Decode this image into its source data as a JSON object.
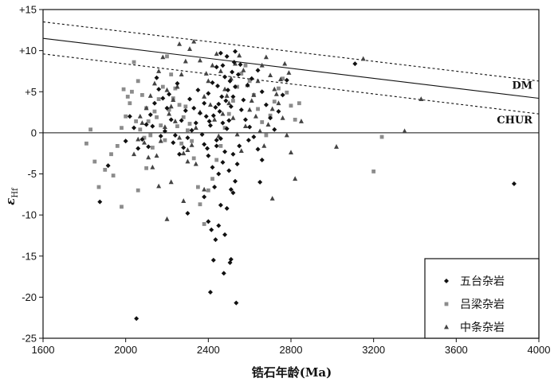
{
  "chart_data": {
    "type": "scatter",
    "xlabel": "锆石年龄(Ma)",
    "ylabel": "ε",
    "ylabel_sub": "Hf",
    "xlim": [
      1600,
      4000
    ],
    "ylim": [
      -25,
      15
    ],
    "x_ticks": [
      1600,
      2000,
      2400,
      2800,
      3200,
      3600,
      4000
    ],
    "y_ticks": [
      15,
      10,
      5,
      0,
      -5,
      -10,
      -15,
      -20,
      -25
    ],
    "y_tick_labels": [
      "+15",
      "+10",
      "+5",
      "0",
      "-5",
      "-10",
      "-15",
      "-20",
      "-25"
    ],
    "grid": false,
    "legend_position": "bottom-right",
    "reference_lines": [
      {
        "label": "DM",
        "style": "solid",
        "points": [
          [
            1600,
            11.5
          ],
          [
            4000,
            4.2
          ]
        ]
      },
      {
        "label": "",
        "style": "dashed",
        "points": [
          [
            1600,
            13.5
          ],
          [
            4000,
            6.3
          ]
        ]
      },
      {
        "label": "",
        "style": "dashed",
        "points": [
          [
            1600,
            9.6
          ],
          [
            4000,
            2.3
          ]
        ]
      },
      {
        "label": "CHUR",
        "style": "solid",
        "points": [
          [
            1600,
            0
          ],
          [
            4000,
            0
          ]
        ]
      }
    ],
    "series": [
      {
        "name": "五台杂岩",
        "marker": "diamond",
        "color": "#111111",
        "points": [
          [
            2052,
            -22.6
          ],
          [
            2410,
            -19.4
          ],
          [
            2425,
            -15.5
          ],
          [
            2435,
            -13.0
          ],
          [
            2475,
            -17.1
          ],
          [
            2510,
            -15.4
          ],
          [
            2505,
            -15.8
          ],
          [
            2535,
            -20.7
          ],
          [
            2415,
            -11.8
          ],
          [
            2450,
            -11.3
          ],
          [
            2480,
            -12.4
          ],
          [
            2400,
            -10.8
          ],
          [
            3880,
            -6.2
          ],
          [
            1875,
            -8.4
          ],
          [
            1915,
            -4.0
          ],
          [
            2300,
            -9.8
          ],
          [
            2380,
            -7.8
          ],
          [
            2460,
            -8.8
          ],
          [
            2490,
            -9.2
          ],
          [
            2520,
            -7.3
          ],
          [
            2430,
            -6.6
          ],
          [
            2450,
            -5.0
          ],
          [
            2470,
            -3.6
          ],
          [
            2480,
            -2.3
          ],
          [
            2420,
            -4.2
          ],
          [
            2400,
            -2.8
          ],
          [
            2380,
            -1.4
          ],
          [
            2440,
            -1.6
          ],
          [
            2500,
            -4.6
          ],
          [
            2520,
            -2.6
          ],
          [
            2460,
            -0.7
          ],
          [
            2490,
            0.5
          ],
          [
            2500,
            1.5
          ],
          [
            2510,
            3.2
          ],
          [
            2520,
            4.4
          ],
          [
            2530,
            5.6
          ],
          [
            2480,
            6.8
          ],
          [
            2470,
            8.2
          ],
          [
            2490,
            9.3
          ],
          [
            2460,
            9.7
          ],
          [
            2530,
            9.9
          ],
          [
            2440,
            8.0
          ],
          [
            2420,
            6.1
          ],
          [
            2400,
            4.8
          ],
          [
            2380,
            3.6
          ],
          [
            2360,
            2.4
          ],
          [
            2340,
            1.2
          ],
          [
            2320,
            0.3
          ],
          [
            2300,
            -0.6
          ],
          [
            2280,
            -1.8
          ],
          [
            2260,
            -2.6
          ],
          [
            2240,
            -0.3
          ],
          [
            2220,
            1.6
          ],
          [
            2200,
            3.0
          ],
          [
            2180,
            4.2
          ],
          [
            2160,
            5.3
          ],
          [
            2140,
            3.6
          ],
          [
            2120,
            2.2
          ],
          [
            2100,
            1.0
          ],
          [
            2080,
            -0.8
          ],
          [
            2060,
            -1.9
          ],
          [
            2040,
            0.6
          ],
          [
            2020,
            2.0
          ],
          [
            2000,
            -1.0
          ],
          [
            2150,
            6.7
          ],
          [
            2250,
            6.0
          ],
          [
            2350,
            5.2
          ],
          [
            2450,
            3.5
          ],
          [
            2560,
            2.8
          ],
          [
            2580,
            1.6
          ],
          [
            2600,
            0.7
          ],
          [
            2620,
            -0.5
          ],
          [
            2640,
            -2.0
          ],
          [
            2660,
            -3.3
          ],
          [
            2570,
            4.0
          ],
          [
            2590,
            5.8
          ],
          [
            2610,
            6.6
          ],
          [
            2640,
            7.6
          ],
          [
            2660,
            5.0
          ],
          [
            2680,
            3.4
          ],
          [
            2700,
            1.8
          ],
          [
            2720,
            0.4
          ],
          [
            2740,
            2.6
          ],
          [
            2760,
            4.6
          ],
          [
            2780,
            6.4
          ],
          [
            2550,
            -1.6
          ],
          [
            2540,
            -3.8
          ],
          [
            2530,
            -5.9
          ],
          [
            2510,
            -6.9
          ],
          [
            2440,
            -0.9
          ],
          [
            2410,
            0.9
          ],
          [
            2390,
            2.0
          ],
          [
            2370,
            -0.2
          ],
          [
            2330,
            3.0
          ],
          [
            2310,
            4.1
          ],
          [
            2290,
            2.7
          ],
          [
            2270,
            1.5
          ],
          [
            2230,
            -1.2
          ],
          [
            2210,
            4.7
          ],
          [
            2190,
            0.2
          ],
          [
            2170,
            -0.4
          ],
          [
            2130,
            0.8
          ],
          [
            2110,
            -1.7
          ],
          [
            2470,
            1.2
          ],
          [
            2455,
            2.6
          ],
          [
            2485,
            3.9
          ],
          [
            2495,
            5.2
          ],
          [
            2505,
            6.3
          ],
          [
            2515,
            7.4
          ],
          [
            2525,
            8.6
          ],
          [
            2545,
            7.1
          ],
          [
            2555,
            8.3
          ],
          [
            2465,
            4.4
          ],
          [
            2445,
            5.7
          ],
          [
            2425,
            2.1
          ],
          [
            2435,
            3.1
          ],
          [
            2405,
            1.4
          ],
          [
            2395,
            -1.9
          ],
          [
            3110,
            8.4
          ],
          [
            2650,
            -6.0
          ],
          [
            2595,
            -0.9
          ]
        ]
      },
      {
        "name": "吕梁杂岩",
        "marker": "square",
        "color": "#8c8c8c",
        "points": [
          [
            1810,
            -1.3
          ],
          [
            1830,
            0.4
          ],
          [
            1850,
            -3.5
          ],
          [
            1870,
            -6.6
          ],
          [
            1900,
            -4.5
          ],
          [
            1930,
            -2.6
          ],
          [
            1960,
            -1.6
          ],
          [
            1980,
            0.6
          ],
          [
            2000,
            2.0
          ],
          [
            2020,
            3.6
          ],
          [
            2030,
            5.0
          ],
          [
            2040,
            8.6
          ],
          [
            2060,
            6.3
          ],
          [
            2080,
            4.6
          ],
          [
            2100,
            3.0
          ],
          [
            2110,
            1.4
          ],
          [
            2120,
            -0.3
          ],
          [
            2130,
            -1.8
          ],
          [
            2140,
            2.6
          ],
          [
            2160,
            4.1
          ],
          [
            2180,
            5.6
          ],
          [
            2200,
            9.3
          ],
          [
            2220,
            7.1
          ],
          [
            2240,
            5.4
          ],
          [
            2260,
            3.4
          ],
          [
            2280,
            1.9
          ],
          [
            2300,
            0.3
          ],
          [
            2320,
            -1.0
          ],
          [
            2330,
            -3.1
          ],
          [
            2350,
            -6.6
          ],
          [
            2360,
            -8.7
          ],
          [
            2380,
            -11.1
          ],
          [
            2400,
            -7.0
          ],
          [
            2420,
            -5.6
          ],
          [
            2440,
            -3.3
          ],
          [
            2460,
            -1.6
          ],
          [
            2480,
            0.6
          ],
          [
            2500,
            2.3
          ],
          [
            2520,
            3.9
          ],
          [
            2540,
            5.6
          ],
          [
            2560,
            7.2
          ],
          [
            2580,
            8.2
          ],
          [
            2600,
            6.3
          ],
          [
            2620,
            4.6
          ],
          [
            2640,
            2.9
          ],
          [
            2660,
            1.3
          ],
          [
            2680,
            -0.3
          ],
          [
            2700,
            2.1
          ],
          [
            2720,
            3.8
          ],
          [
            2740,
            5.4
          ],
          [
            2760,
            6.6
          ],
          [
            2780,
            4.9
          ],
          [
            2800,
            3.3
          ],
          [
            2820,
            1.6
          ],
          [
            2840,
            3.6
          ],
          [
            1980,
            -9.0
          ],
          [
            2060,
            -7.0
          ],
          [
            2100,
            -4.3
          ],
          [
            1940,
            -5.2
          ],
          [
            1990,
            5.3
          ],
          [
            2010,
            4.4
          ],
          [
            2050,
            1.4
          ],
          [
            2070,
            0.4
          ],
          [
            2090,
            -0.6
          ],
          [
            2150,
            1.9
          ],
          [
            2170,
            0.9
          ],
          [
            2190,
            -0.9
          ],
          [
            2210,
            2.8
          ],
          [
            2230,
            4.2
          ],
          [
            2250,
            0.8
          ],
          [
            2270,
            -1.3
          ],
          [
            2290,
            3.2
          ],
          [
            2310,
            1.1
          ],
          [
            3200,
            -4.7
          ],
          [
            3240,
            -0.5
          ]
        ]
      },
      {
        "name": "中条杂岩",
        "marker": "triangle",
        "color": "#444444",
        "points": [
          [
            2040,
            -2.6
          ],
          [
            2060,
            -0.8
          ],
          [
            2080,
            1.2
          ],
          [
            2100,
            3.0
          ],
          [
            2120,
            4.5
          ],
          [
            2140,
            6.0
          ],
          [
            2160,
            7.5
          ],
          [
            2180,
            9.2
          ],
          [
            2200,
            5.2
          ],
          [
            2220,
            3.2
          ],
          [
            2240,
            1.4
          ],
          [
            2260,
            -0.6
          ],
          [
            2280,
            -2.5
          ],
          [
            2300,
            -3.5
          ],
          [
            2320,
            -1.5
          ],
          [
            2340,
            0.6
          ],
          [
            2360,
            2.5
          ],
          [
            2380,
            4.4
          ],
          [
            2400,
            6.3
          ],
          [
            2420,
            8.2
          ],
          [
            2440,
            9.6
          ],
          [
            2330,
            11.1
          ],
          [
            2310,
            10.2
          ],
          [
            2290,
            8.7
          ],
          [
            2270,
            7.1
          ],
          [
            2250,
            5.6
          ],
          [
            2230,
            4.0
          ],
          [
            2210,
            2.3
          ],
          [
            2190,
            0.7
          ],
          [
            2170,
            -1.0
          ],
          [
            2150,
            -2.8
          ],
          [
            2130,
            -4.2
          ],
          [
            2110,
            -3.0
          ],
          [
            2090,
            -1.2
          ],
          [
            2070,
            2.0
          ],
          [
            2460,
            7.5
          ],
          [
            2480,
            5.3
          ],
          [
            2500,
            3.6
          ],
          [
            2520,
            1.8
          ],
          [
            2540,
            -0.2
          ],
          [
            2560,
            -2.2
          ],
          [
            2580,
            0.8
          ],
          [
            2600,
            2.8
          ],
          [
            2620,
            4.6
          ],
          [
            2640,
            6.3
          ],
          [
            2660,
            8.2
          ],
          [
            2680,
            9.2
          ],
          [
            2700,
            7.0
          ],
          [
            2720,
            5.3
          ],
          [
            2740,
            3.6
          ],
          [
            2760,
            1.8
          ],
          [
            2780,
            -0.3
          ],
          [
            2800,
            -2.4
          ],
          [
            2820,
            -5.6
          ],
          [
            2850,
            1.4
          ],
          [
            3020,
            -1.7
          ],
          [
            3150,
            9.0
          ],
          [
            3350,
            0.2
          ],
          [
            3430,
            4.1
          ],
          [
            2200,
            -10.5
          ],
          [
            2220,
            -6.0
          ],
          [
            2380,
            -6.9
          ],
          [
            2300,
            -2.1
          ],
          [
            2340,
            -3.8
          ],
          [
            2360,
            8.8
          ],
          [
            2390,
            7.2
          ],
          [
            2410,
            3.4
          ],
          [
            2430,
            1.6
          ],
          [
            2450,
            -0.4
          ],
          [
            2470,
            2.3
          ],
          [
            2490,
            4.5
          ],
          [
            2510,
            6.6
          ],
          [
            2530,
            8.4
          ],
          [
            2550,
            9.4
          ],
          [
            2570,
            7.6
          ],
          [
            2590,
            5.8
          ],
          [
            2610,
            3.9
          ],
          [
            2630,
            2.0
          ],
          [
            2650,
            0.2
          ],
          [
            2670,
            -1.6
          ],
          [
            2690,
            1.0
          ],
          [
            2710,
            2.9
          ],
          [
            2730,
            4.7
          ],
          [
            2750,
            6.5
          ],
          [
            2770,
            8.4
          ],
          [
            2790,
            7.3
          ],
          [
            2710,
            -8.0
          ],
          [
            2160,
            -6.5
          ],
          [
            2260,
            10.8
          ],
          [
            2280,
            -8.3
          ]
        ]
      }
    ]
  }
}
